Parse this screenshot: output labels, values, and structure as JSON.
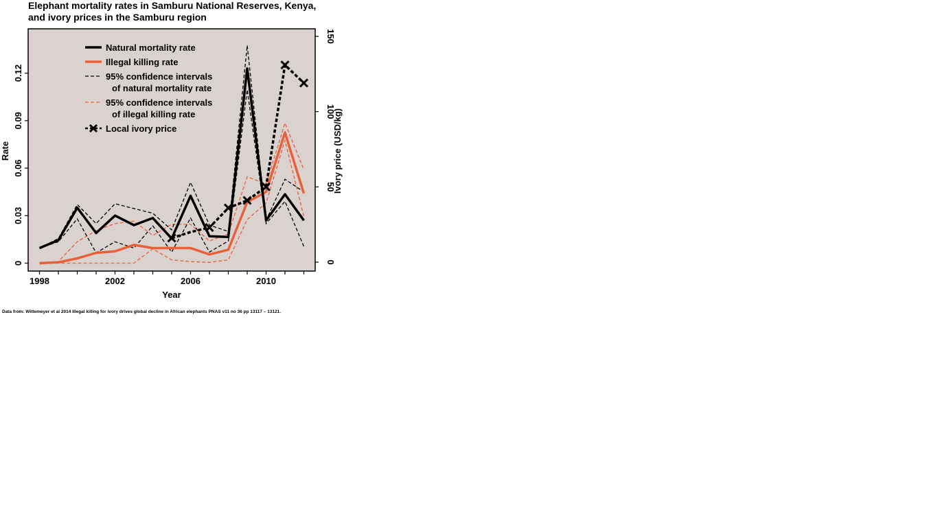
{
  "title_line1": "Elephant mortality rates in Samburu National Reserves, Kenya,",
  "title_line2": "and ivory prices in the Samburu region",
  "source": "Data from: Wittemeyer et al 2014 Illegal killing for ivory drives global decline in African elephants PNAS v11 no 36 pp 13117 – 13121.",
  "colors": {
    "panel_bg": "#d9d2cf",
    "natural": "#000000",
    "illegal": "#e8603a"
  },
  "chart_data": {
    "type": "line",
    "xlabel": "Year",
    "ylabel": "Rate",
    "y2label": "Ivory price (USD/kg)",
    "xlim": [
      1997.4,
      2012.6
    ],
    "ylim": [
      -0.005,
      0.148
    ],
    "y2lim": [
      -5.9,
      155
    ],
    "x_ticks": [
      1998,
      2002,
      2006,
      2010
    ],
    "y_ticks": [
      0,
      0.03,
      0.06,
      0.09,
      0.12
    ],
    "y_tick_labels": [
      "0",
      "0.03",
      "0.06",
      "0.09",
      "0.12"
    ],
    "y2_ticks": [
      0,
      50,
      100,
      150
    ],
    "y2_tick_labels": [
      "0",
      "50",
      "100",
      "150"
    ],
    "legend_position": "top-left",
    "series": [
      {
        "name": "Natural mortality rate",
        "axis": "left",
        "style": "solid-black",
        "x": [
          1998,
          1999,
          2000,
          2001,
          2002,
          2003,
          2004,
          2005,
          2006,
          2007,
          2008,
          2009,
          2010,
          2011,
          2012
        ],
        "values": [
          0.0095,
          0.0145,
          0.035,
          0.019,
          0.03,
          0.024,
          0.0285,
          0.0155,
          0.0425,
          0.017,
          0.0165,
          0.123,
          0.027,
          0.0435,
          0.027
        ]
      },
      {
        "name": "Illegal killing rate",
        "axis": "left",
        "style": "solid-red",
        "x": [
          1998,
          1999,
          2000,
          2001,
          2002,
          2003,
          2004,
          2005,
          2006,
          2007,
          2008,
          2009,
          2010,
          2011,
          2012
        ],
        "values": [
          0,
          0.0005,
          0.003,
          0.0065,
          0.0075,
          0.0115,
          0.0095,
          0.0095,
          0.0095,
          0.0055,
          0.0085,
          0.0385,
          0.045,
          0.0825,
          0.044
        ]
      },
      {
        "name": "95% confidence intervals of natural mortality rate",
        "axis": "left",
        "style": "dashed-black",
        "x": [
          1998,
          1999,
          2000,
          2001,
          2002,
          2003,
          2004,
          2005,
          2006,
          2007,
          2008,
          2009,
          2010,
          2011,
          2012
        ],
        "upper": [
          0.0095,
          0.0155,
          0.037,
          0.025,
          0.0375,
          0.0345,
          0.0315,
          0.021,
          0.051,
          0.024,
          0.02,
          0.1375,
          0.027,
          0.053,
          0.045
        ],
        "lower": [
          0.0095,
          0.0135,
          0.028,
          0.0065,
          0.0135,
          0.0095,
          0.0235,
          0.007,
          0.0285,
          0.007,
          0.014,
          0.1095,
          0.025,
          0.039,
          0.0105
        ]
      },
      {
        "name": "95% confidence intervals of illegal killing rate",
        "axis": "left",
        "style": "dashed-red",
        "x": [
          1998,
          1999,
          2000,
          2001,
          2002,
          2003,
          2004,
          2005,
          2006,
          2007,
          2008,
          2009,
          2010,
          2011,
          2012
        ],
        "upper": [
          0,
          0.001,
          0.0135,
          0.0205,
          0.025,
          0.0265,
          0.0175,
          0.0245,
          0.0245,
          0.014,
          0.0185,
          0.0545,
          0.05,
          0.0885,
          0.059
        ],
        "lower": [
          0,
          0,
          0,
          0,
          0,
          0,
          0.009,
          0.002,
          0.001,
          0.0005,
          0.002,
          0.0275,
          0.038,
          0.0775,
          0.0295
        ]
      },
      {
        "name": "Local ivory price",
        "axis": "right",
        "style": "dashed-black-x",
        "x": [
          2005,
          2006,
          2007,
          2008,
          2009,
          2010,
          2011,
          2012
        ],
        "values": [
          16,
          20,
          23,
          36,
          41,
          50,
          131,
          119
        ],
        "markers": [
          2005,
          2007,
          2008,
          2009,
          2010,
          2011,
          2012
        ]
      }
    ],
    "legend": [
      {
        "line1": "Natural mortality rate",
        "line2": ""
      },
      {
        "line1": "Illegal killing rate",
        "line2": ""
      },
      {
        "line1": "95% confidence intervals",
        "line2": "of natural mortality rate"
      },
      {
        "line1": "95% confidence intervals",
        "line2": "of illegal killing rate"
      },
      {
        "line1": "Local ivory price",
        "line2": ""
      }
    ]
  }
}
